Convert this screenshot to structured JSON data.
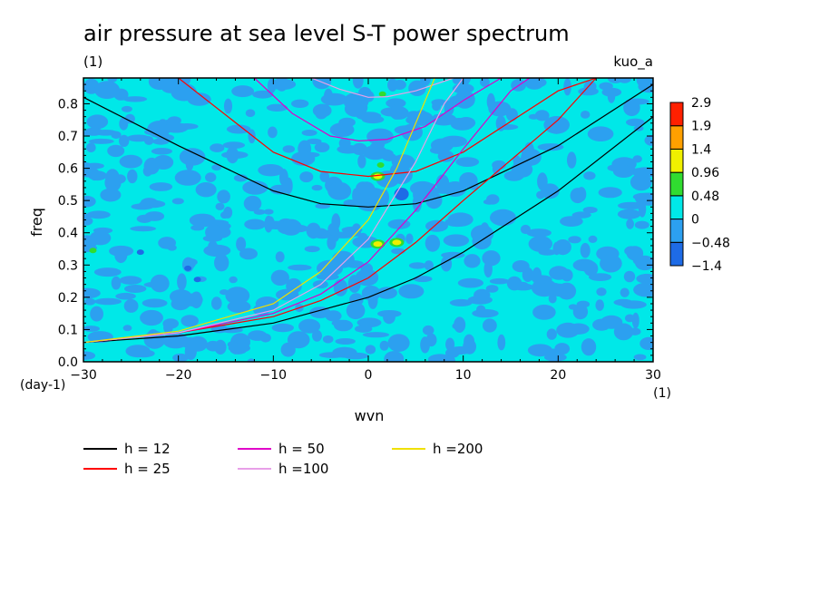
{
  "chart_data": {
    "type": "heatmap",
    "title": "air pressure at sea level S-T power spectrum",
    "subtitle_left": "(1)",
    "subtitle_right": "kuo_a",
    "xlabel": "wvn",
    "ylabel": "freq",
    "x_unit": "(1)",
    "y_unit": "(day-1)",
    "xlim": [
      -30,
      30
    ],
    "ylim": [
      0,
      0.88
    ],
    "x_ticks": [
      -30,
      -20,
      -10,
      0,
      10,
      20,
      30
    ],
    "y_ticks": [
      0.0,
      0.1,
      0.2,
      0.3,
      0.4,
      0.5,
      0.6,
      0.7,
      0.8
    ],
    "colorbar": {
      "levels": [
        "-1.4",
        "-0.48",
        "0",
        "0.48",
        "0.96",
        "1.4",
        "1.9",
        "2.9"
      ],
      "colors": [
        "#1e6be6",
        "#2ca0f0",
        "#00e8e8",
        "#30dc30",
        "#f0f000",
        "#ffa000",
        "#ff2000"
      ]
    },
    "field": {
      "dominant_values": [
        "0",
        "-0.48"
      ],
      "dominant_colors": [
        "#00e8e8",
        "#2ca0f0"
      ],
      "hotspots": [
        {
          "wvn": 1,
          "freq": 0.575,
          "level": "0.96"
        },
        {
          "wvn": 1,
          "freq": 0.365,
          "level": "0.96"
        },
        {
          "wvn": 3,
          "freq": 0.37,
          "level": "0.96"
        },
        {
          "wvn": 1.3,
          "freq": 0.61,
          "level": "0.48"
        },
        {
          "wvn": 1.5,
          "freq": 0.83,
          "level": "0.48"
        },
        {
          "wvn": -29,
          "freq": 0.345,
          "level": "0.48"
        },
        {
          "wvn": 3.5,
          "freq": 0.52,
          "level": "-1.4"
        },
        {
          "wvn": -24,
          "freq": 0.34,
          "level": "-1.4"
        },
        {
          "wvn": -19,
          "freq": 0.29,
          "level": "-1.4"
        },
        {
          "wvn": -18,
          "freq": 0.255,
          "level": "-1.4"
        }
      ]
    },
    "series": [
      {
        "name": "h = 12",
        "color": "#000000"
      },
      {
        "name": "h = 25",
        "color": "#ff0000"
      },
      {
        "name": "h = 50",
        "color": "#e000c8"
      },
      {
        "name": "h =100",
        "color": "#e8a0e8"
      },
      {
        "name": "h =200",
        "color": "#f0e000"
      }
    ],
    "curves": [
      {
        "kind": "eig",
        "h": 12,
        "color": "#000000",
        "points": [
          [
            -30,
            0.82
          ],
          [
            -20,
            0.67
          ],
          [
            -10,
            0.53
          ],
          [
            -5,
            0.49
          ],
          [
            0,
            0.48
          ],
          [
            5,
            0.49
          ],
          [
            10,
            0.53
          ],
          [
            20,
            0.67
          ],
          [
            30,
            0.86
          ]
        ]
      },
      {
        "kind": "eig",
        "h": 25,
        "color": "#ff0000",
        "points": [
          [
            -20,
            0.88
          ],
          [
            -10,
            0.65
          ],
          [
            -5,
            0.59
          ],
          [
            0,
            0.575
          ],
          [
            5,
            0.59
          ],
          [
            10,
            0.65
          ],
          [
            20,
            0.84
          ],
          [
            24,
            0.88
          ]
        ]
      },
      {
        "kind": "eig",
        "h": 50,
        "color": "#e000c8",
        "points": [
          [
            -12,
            0.88
          ],
          [
            -8,
            0.77
          ],
          [
            -4,
            0.7
          ],
          [
            -1,
            0.685
          ],
          [
            2,
            0.69
          ],
          [
            6,
            0.73
          ],
          [
            10,
            0.81
          ],
          [
            14,
            0.88
          ]
        ]
      },
      {
        "kind": "eig",
        "h": 100,
        "color": "#e8a0e8",
        "points": [
          [
            -6,
            0.88
          ],
          [
            -3,
            0.845
          ],
          [
            0,
            0.82
          ],
          [
            2,
            0.822
          ],
          [
            5,
            0.84
          ],
          [
            9,
            0.88
          ]
        ]
      },
      {
        "kind": "kelvin",
        "h": 12,
        "color": "#000000",
        "points": [
          [
            -30,
            0.06
          ],
          [
            -20,
            0.08
          ],
          [
            -10,
            0.12
          ],
          [
            -5,
            0.16
          ],
          [
            0,
            0.2
          ],
          [
            5,
            0.26
          ],
          [
            10,
            0.34
          ],
          [
            20,
            0.53
          ],
          [
            30,
            0.76
          ]
        ]
      },
      {
        "kind": "kelvin",
        "h": 25,
        "color": "#ff0000",
        "points": [
          [
            -30,
            0.06
          ],
          [
            -20,
            0.09
          ],
          [
            -10,
            0.14
          ],
          [
            -5,
            0.19
          ],
          [
            0,
            0.26
          ],
          [
            5,
            0.37
          ],
          [
            10,
            0.5
          ],
          [
            20,
            0.75
          ],
          [
            24,
            0.88
          ]
        ]
      },
      {
        "kind": "kelvin",
        "h": 50,
        "color": "#e000c8",
        "points": [
          [
            -30,
            0.06
          ],
          [
            -20,
            0.09
          ],
          [
            -10,
            0.15
          ],
          [
            -5,
            0.21
          ],
          [
            0,
            0.31
          ],
          [
            5,
            0.47
          ],
          [
            10,
            0.66
          ],
          [
            15,
            0.84
          ],
          [
            17,
            0.88
          ]
        ]
      },
      {
        "kind": "kelvin",
        "h": 100,
        "color": "#e8a0e8",
        "points": [
          [
            -30,
            0.06
          ],
          [
            -20,
            0.09
          ],
          [
            -10,
            0.16
          ],
          [
            -5,
            0.24
          ],
          [
            0,
            0.38
          ],
          [
            5,
            0.62
          ],
          [
            8,
            0.8
          ],
          [
            10,
            0.88
          ]
        ]
      },
      {
        "kind": "kelvin",
        "h": 200,
        "color": "#f0e000",
        "points": [
          [
            -30,
            0.06
          ],
          [
            -20,
            0.095
          ],
          [
            -10,
            0.18
          ],
          [
            -5,
            0.28
          ],
          [
            0,
            0.44
          ],
          [
            3,
            0.6
          ],
          [
            5,
            0.74
          ],
          [
            7,
            0.88
          ]
        ]
      }
    ]
  }
}
